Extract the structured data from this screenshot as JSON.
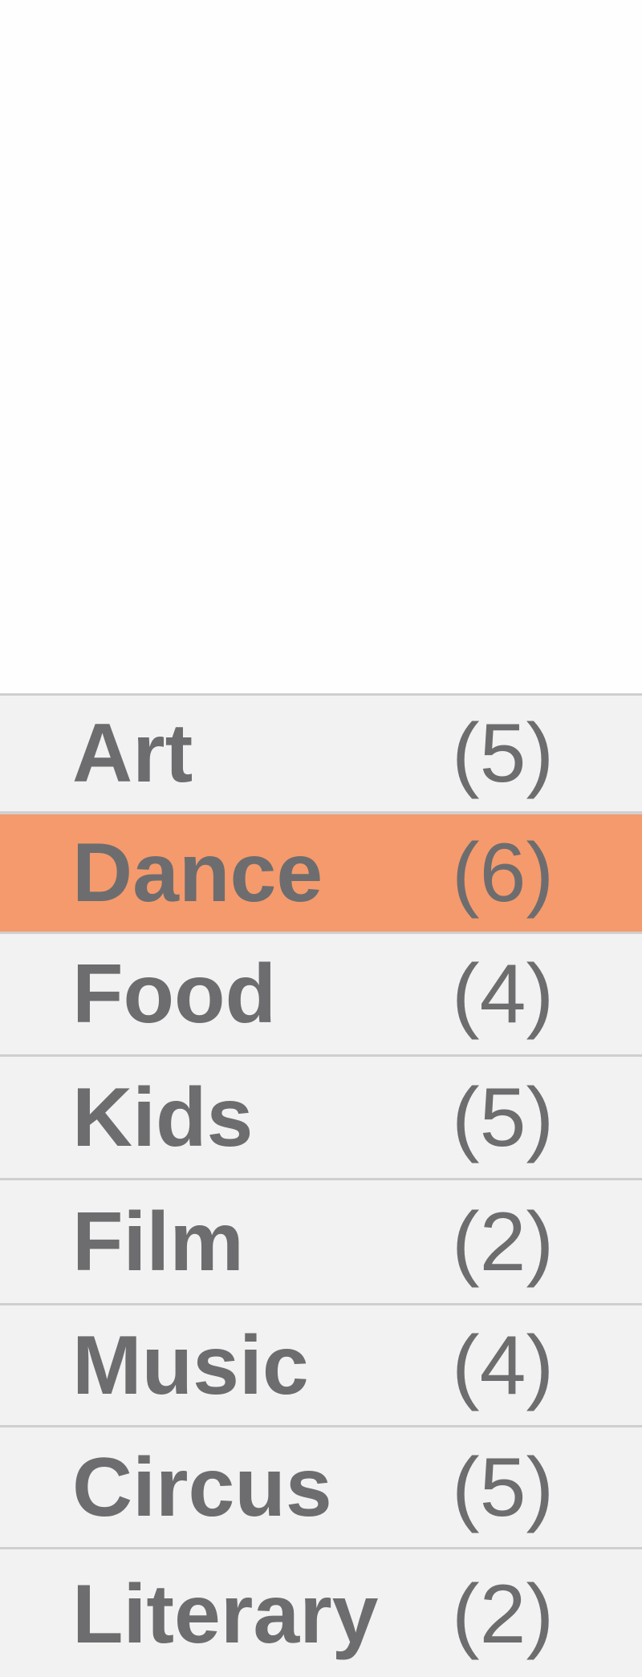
{
  "categories": {
    "items": [
      {
        "label": "Art",
        "count": "(5)",
        "selected": false
      },
      {
        "label": "Dance",
        "count": "(6)",
        "selected": true
      },
      {
        "label": "Food",
        "count": "(4)",
        "selected": false
      },
      {
        "label": "Kids",
        "count": "(5)",
        "selected": false
      },
      {
        "label": "Film",
        "count": "(2)",
        "selected": false
      },
      {
        "label": "Music",
        "count": "(4)",
        "selected": false
      },
      {
        "label": "Circus",
        "count": "(5)",
        "selected": false
      },
      {
        "label": "Literary",
        "count": "(2)",
        "selected": false
      }
    ]
  },
  "colors": {
    "selected_background": "#f59a6c",
    "row_background": "#f2f2f2",
    "text": "#6d6d6f",
    "divider": "#cfcfcf"
  }
}
